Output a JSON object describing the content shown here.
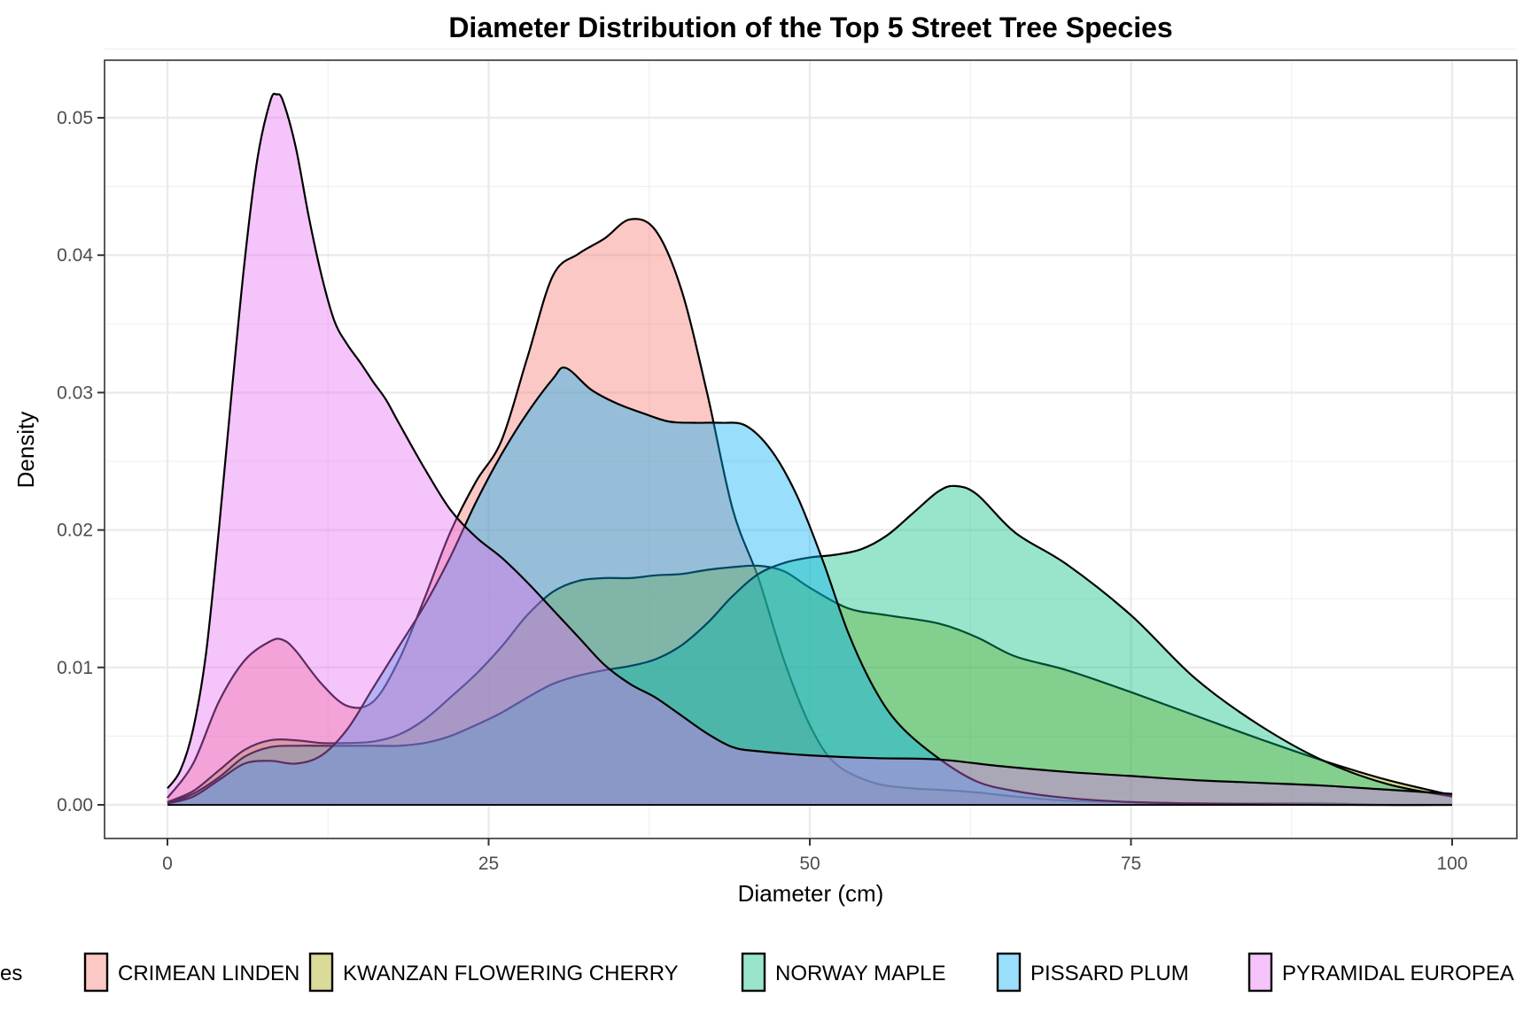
{
  "chart_data": {
    "type": "area",
    "subtype": "density",
    "title": "Diameter Distribution of the Top 5 Street Tree Species",
    "xlabel": "Diameter (cm)",
    "ylabel": "Density",
    "xlim": [
      -10,
      105
    ],
    "ylim": [
      -0.0025,
      0.054
    ],
    "x_ticks": [
      0,
      25,
      50,
      75,
      100
    ],
    "x_tick_labels": [
      "0",
      "25",
      "50",
      "75",
      "100"
    ],
    "y_ticks": [
      0,
      0.01,
      0.02,
      0.03,
      0.04,
      0.05
    ],
    "y_tick_labels": [
      "0.00",
      "0.01",
      "0.02",
      "0.03",
      "0.04",
      "0.05"
    ],
    "grid": true,
    "fill_alpha": 0.4,
    "legend": {
      "position": "bottom",
      "title_visible_fragment": "es",
      "entries": [
        "CRIMEAN LINDEN",
        "KWANZAN FLOWERING CHERRY",
        "NORWAY MAPLE",
        "PISSARD PLUM",
        "PYRAMIDAL EUROPEA"
      ]
    },
    "series": [
      {
        "name": "CRIMEAN LINDEN",
        "color": "#F8766D",
        "x": [
          0,
          2,
          4,
          6,
          8,
          9,
          10,
          12,
          14,
          16,
          18,
          20,
          22,
          24,
          26,
          28,
          30,
          32,
          34,
          36,
          38,
          40,
          42,
          44,
          46,
          48,
          50,
          52,
          55,
          58,
          60,
          63,
          66,
          70,
          75,
          80,
          85,
          90,
          95,
          100
        ],
        "y": [
          0.0005,
          0.003,
          0.0075,
          0.0105,
          0.0119,
          0.012,
          0.0112,
          0.0088,
          0.0072,
          0.0075,
          0.0105,
          0.015,
          0.0198,
          0.0235,
          0.0265,
          0.0325,
          0.0385,
          0.0401,
          0.0412,
          0.0426,
          0.0418,
          0.0375,
          0.03,
          0.0215,
          0.0165,
          0.0105,
          0.0058,
          0.003,
          0.0016,
          0.0012,
          0.0011,
          0.0009,
          0.0006,
          0.0003,
          0.0002,
          0.0001,
          0.0001,
          0.0001,
          0.0,
          0.0
        ]
      },
      {
        "name": "KWANZAN FLOWERING CHERRY",
        "color": "#A3A500",
        "x": [
          0,
          2,
          4,
          6,
          8,
          10,
          12,
          14,
          16,
          18,
          20,
          22,
          24,
          26,
          28,
          30,
          32,
          34,
          36,
          38,
          40,
          42,
          44,
          46,
          48,
          50,
          53,
          56,
          60,
          63,
          66,
          70,
          75,
          80,
          85,
          90,
          95,
          100
        ],
        "y": [
          0.0002,
          0.001,
          0.0025,
          0.004,
          0.0047,
          0.0047,
          0.0045,
          0.0045,
          0.0046,
          0.0051,
          0.0062,
          0.0078,
          0.0095,
          0.0115,
          0.0138,
          0.0155,
          0.0163,
          0.0165,
          0.0165,
          0.0167,
          0.0168,
          0.0171,
          0.0173,
          0.0174,
          0.017,
          0.0158,
          0.0143,
          0.0138,
          0.0132,
          0.0122,
          0.0108,
          0.0098,
          0.0082,
          0.0065,
          0.0048,
          0.0032,
          0.0018,
          0.0007
        ]
      },
      {
        "name": "NORWAY MAPLE",
        "color": "#00BF7D",
        "x": [
          0,
          2,
          4,
          6,
          8,
          10,
          12,
          14,
          16,
          18,
          20,
          22,
          24,
          26,
          28,
          30,
          32,
          34,
          36,
          38,
          40,
          42,
          44,
          46,
          48,
          50,
          52,
          54,
          56,
          58,
          60,
          61.3,
          63,
          66,
          70,
          75,
          80,
          85,
          90,
          95,
          100
        ],
        "y": [
          0.0001,
          0.0008,
          0.002,
          0.0035,
          0.0042,
          0.0043,
          0.0043,
          0.0043,
          0.0043,
          0.0043,
          0.0045,
          0.005,
          0.0058,
          0.0067,
          0.0078,
          0.0088,
          0.0094,
          0.0098,
          0.0101,
          0.0106,
          0.0116,
          0.0132,
          0.0152,
          0.0168,
          0.0176,
          0.018,
          0.0182,
          0.0186,
          0.0196,
          0.0212,
          0.0228,
          0.0232,
          0.0226,
          0.0198,
          0.0175,
          0.0138,
          0.0092,
          0.0058,
          0.0032,
          0.0015,
          0.0006
        ]
      },
      {
        "name": "PISSARD PLUM",
        "color": "#00B0F6",
        "x": [
          0,
          2,
          4,
          6,
          8,
          10,
          12,
          14,
          16,
          18,
          20,
          22,
          24,
          26,
          28,
          30,
          31,
          33,
          35,
          37,
          39,
          41,
          43,
          45,
          47,
          49,
          51,
          53,
          55,
          57,
          60,
          63,
          66,
          70,
          75,
          80,
          90,
          100
        ],
        "y": [
          0.0001,
          0.0006,
          0.0018,
          0.003,
          0.0032,
          0.003,
          0.0036,
          0.0055,
          0.0085,
          0.0115,
          0.0145,
          0.018,
          0.022,
          0.0255,
          0.0285,
          0.031,
          0.0318,
          0.0302,
          0.0292,
          0.0285,
          0.0279,
          0.0278,
          0.0278,
          0.0276,
          0.0258,
          0.0225,
          0.0178,
          0.0125,
          0.0085,
          0.0058,
          0.0034,
          0.0017,
          0.001,
          0.0005,
          0.0002,
          0.0001,
          0.0,
          0.0
        ]
      },
      {
        "name": "PYRAMIDAL EUROPEA",
        "color": "#E76BF3",
        "x": [
          0,
          1,
          2,
          3,
          4,
          5,
          6,
          7,
          8,
          8.5,
          9,
          10,
          11,
          12,
          13,
          14,
          15,
          16,
          17,
          18,
          20,
          22,
          24,
          26,
          28,
          30,
          32,
          34,
          36,
          38,
          40,
          42,
          44,
          46,
          50,
          55,
          60,
          65,
          70,
          75,
          80,
          85,
          90,
          95,
          100
        ],
        "y": [
          0.0012,
          0.0025,
          0.0055,
          0.011,
          0.02,
          0.03,
          0.0395,
          0.047,
          0.0512,
          0.0517,
          0.0512,
          0.0478,
          0.0428,
          0.0385,
          0.0352,
          0.0335,
          0.0322,
          0.0308,
          0.0295,
          0.0278,
          0.0245,
          0.0215,
          0.0195,
          0.018,
          0.0162,
          0.0142,
          0.0122,
          0.0102,
          0.0088,
          0.0078,
          0.0065,
          0.0052,
          0.0042,
          0.0039,
          0.0036,
          0.0034,
          0.0033,
          0.0028,
          0.0024,
          0.0021,
          0.0018,
          0.0016,
          0.0014,
          0.0011,
          0.0008
        ]
      }
    ]
  }
}
